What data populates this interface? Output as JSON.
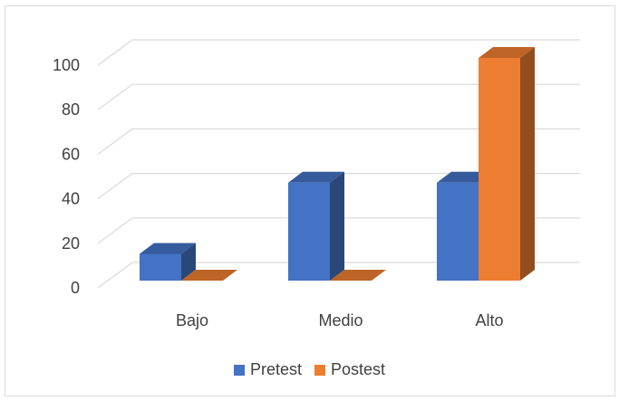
{
  "chart_data": {
    "type": "bar",
    "title": "",
    "xlabel": "",
    "ylabel": "",
    "categories": [
      "Bajo",
      "Medio",
      "Alto"
    ],
    "series": [
      {
        "name": "Pretest",
        "values": [
          12,
          44,
          44
        ],
        "color": "#4472c4"
      },
      {
        "name": "Postest",
        "values": [
          0,
          0,
          100
        ],
        "color": "#ed7d31"
      }
    ],
    "ylim": [
      0,
      100
    ],
    "yticks": [
      0,
      20,
      40,
      60,
      80,
      100
    ],
    "grid": true,
    "legend_position": "bottom",
    "style": "3d-clustered-column"
  }
}
